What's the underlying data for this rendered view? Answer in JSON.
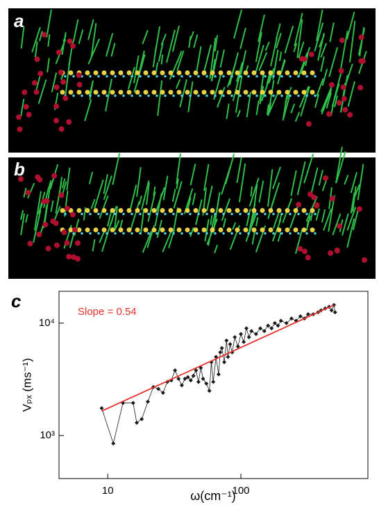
{
  "panel_labels": [
    "a",
    "b",
    "c"
  ],
  "chart_data": {
    "type": "scatter",
    "annotation": "Slope = 0.54",
    "xlabel": "ω(cm⁻¹)",
    "ylabel": "Vₚₓ  (ms⁻¹)",
    "log_x": true,
    "log_y": true,
    "xlim": [
      4.3,
      900
    ],
    "ylim": [
      414,
      19200
    ],
    "xticks": [
      10,
      100
    ],
    "yticks": [
      {
        "value": 1000,
        "label": "10³"
      },
      {
        "value": 10000,
        "label": "10⁴"
      }
    ],
    "series": [
      {
        "name": null,
        "color": "#1a1a1a",
        "x": [
          9,
          11,
          13,
          15.5,
          16.5,
          18,
          20,
          22,
          24,
          26,
          28,
          30,
          32,
          34,
          36,
          38,
          40,
          42,
          44,
          46,
          48,
          50,
          52,
          55,
          58,
          60,
          62,
          65,
          68,
          70,
          72,
          75,
          78,
          80,
          83,
          86,
          90,
          95,
          100,
          105,
          110,
          115,
          120,
          130,
          140,
          150,
          160,
          170,
          180,
          190,
          200,
          220,
          240,
          260,
          280,
          300,
          320,
          350,
          380,
          400,
          430,
          460,
          480,
          500,
          510
        ],
        "values": [
          1750,
          850,
          1950,
          1950,
          1300,
          1400,
          2000,
          2700,
          2600,
          2400,
          3000,
          3100,
          3800,
          3200,
          2800,
          3200,
          3300,
          3100,
          3400,
          3800,
          3000,
          4000,
          3200,
          2900,
          2500,
          4500,
          3000,
          5000,
          3500,
          5500,
          6000,
          4500,
          7000,
          5000,
          6500,
          5500,
          7500,
          6200,
          8000,
          6800,
          9000,
          7500,
          8500,
          8000,
          9000,
          8500,
          9500,
          9000,
          10000,
          9500,
          10500,
          10000,
          11000,
          10500,
          11500,
          11000,
          12000,
          12000,
          12500,
          13000,
          13500,
          14000,
          13000,
          14500,
          12500
        ]
      }
    ],
    "fit_line": {
      "color": "#e8302a",
      "x": [
        9,
        500
      ],
      "values": [
        1650,
        14500
      ]
    }
  }
}
